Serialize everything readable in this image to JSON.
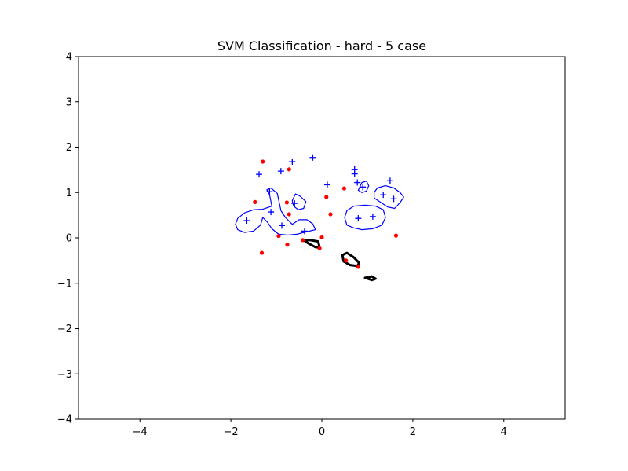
{
  "chart_data": {
    "type": "scatter",
    "title": "SVM Classification - hard - 5 case",
    "xlabel": "",
    "ylabel": "",
    "xlim": [
      -5.35,
      5.35
    ],
    "ylim": [
      -4,
      4
    ],
    "xticks": [
      -4,
      -2,
      0,
      2,
      4
    ],
    "yticks": [
      -4,
      -3,
      -2,
      -1,
      0,
      1,
      2,
      3,
      4
    ],
    "xtick_labels": [
      "−4",
      "−2",
      "0",
      "2",
      "4"
    ],
    "ytick_labels": [
      "−4",
      "−3",
      "−2",
      "−1",
      "0",
      "1",
      "2",
      "3",
      "4"
    ],
    "grid": false,
    "series": [
      {
        "marker": "plus",
        "color": "#0000ff",
        "points": [
          [
            -1.38,
            1.4
          ],
          [
            -0.9,
            1.47
          ],
          [
            -0.65,
            1.68
          ],
          [
            -0.2,
            1.77
          ],
          [
            0.72,
            1.51
          ],
          [
            0.72,
            1.41
          ],
          [
            0.78,
            1.22
          ],
          [
            0.9,
            1.12
          ],
          [
            1.5,
            1.26
          ],
          [
            0.12,
            1.17
          ],
          [
            -1.15,
            1.02
          ],
          [
            -0.6,
            0.76
          ],
          [
            1.35,
            0.95
          ],
          [
            1.58,
            0.86
          ],
          [
            -1.65,
            0.38
          ],
          [
            -1.12,
            0.57
          ],
          [
            -0.88,
            0.27
          ],
          [
            0.8,
            0.43
          ],
          [
            1.12,
            0.47
          ],
          [
            -0.38,
            0.15
          ]
        ]
      },
      {
        "marker": "dot",
        "color": "#ff0000",
        "points": [
          [
            -1.3,
            1.68
          ],
          [
            -0.72,
            1.51
          ],
          [
            -1.47,
            0.79
          ],
          [
            -0.77,
            0.78
          ],
          [
            -0.72,
            0.52
          ],
          [
            0.1,
            0.9
          ],
          [
            0.49,
            1.09
          ],
          [
            0.19,
            0.52
          ],
          [
            -0.95,
            0.04
          ],
          [
            -0.42,
            -0.05
          ],
          [
            -0.76,
            -0.15
          ],
          [
            -0.05,
            -0.23
          ],
          [
            0.0,
            0.01
          ],
          [
            -1.32,
            -0.33
          ],
          [
            1.63,
            0.05
          ],
          [
            0.53,
            -0.5
          ],
          [
            0.8,
            -0.64
          ]
        ]
      }
    ],
    "contours": [
      {
        "color": "#0000ff",
        "path": [
          [
            -0.98,
            0.98
          ],
          [
            -1.12,
            1.1
          ],
          [
            -1.21,
            1.06
          ],
          [
            -1.15,
            0.95
          ],
          [
            -1.1,
            0.7
          ],
          [
            -1.3,
            0.63
          ],
          [
            -1.5,
            0.62
          ],
          [
            -1.7,
            0.55
          ],
          [
            -1.85,
            0.43
          ],
          [
            -1.9,
            0.3
          ],
          [
            -1.85,
            0.18
          ],
          [
            -1.7,
            0.12
          ],
          [
            -1.5,
            0.15
          ],
          [
            -1.35,
            0.28
          ],
          [
            -1.3,
            0.45
          ],
          [
            -1.2,
            0.35
          ],
          [
            -1.1,
            0.2
          ],
          [
            -0.95,
            0.08
          ],
          [
            -0.75,
            0.06
          ],
          [
            -0.55,
            0.08
          ],
          [
            -0.35,
            0.13
          ],
          [
            -0.14,
            0.18
          ],
          [
            -0.2,
            0.31
          ],
          [
            -0.33,
            0.4
          ],
          [
            -0.5,
            0.4
          ],
          [
            -0.65,
            0.3
          ],
          [
            -0.8,
            0.45
          ],
          [
            -0.9,
            0.6
          ],
          [
            -0.98,
            0.98
          ]
        ]
      },
      {
        "color": "#0000ff",
        "path": [
          [
            -0.65,
            0.82
          ],
          [
            -0.58,
            0.97
          ],
          [
            -0.48,
            0.92
          ],
          [
            -0.35,
            0.8
          ],
          [
            -0.4,
            0.65
          ],
          [
            -0.52,
            0.62
          ],
          [
            -0.62,
            0.7
          ],
          [
            -0.65,
            0.82
          ]
        ]
      },
      {
        "color": "#0000ff",
        "path": [
          [
            0.8,
            1.05
          ],
          [
            0.88,
            1.22
          ],
          [
            0.98,
            1.25
          ],
          [
            1.03,
            1.15
          ],
          [
            0.98,
            1.03
          ],
          [
            0.88,
            1.0
          ],
          [
            0.8,
            1.05
          ]
        ]
      },
      {
        "color": "#0000ff",
        "path": [
          [
            1.15,
            1.0
          ],
          [
            1.22,
            1.1
          ],
          [
            1.4,
            1.15
          ],
          [
            1.58,
            1.1
          ],
          [
            1.72,
            1.0
          ],
          [
            1.8,
            0.9
          ],
          [
            1.72,
            0.78
          ],
          [
            1.6,
            0.65
          ],
          [
            1.45,
            0.68
          ],
          [
            1.3,
            0.78
          ],
          [
            1.15,
            0.88
          ],
          [
            1.15,
            1.0
          ]
        ]
      },
      {
        "color": "#0000ff",
        "path": [
          [
            0.55,
            0.6
          ],
          [
            0.7,
            0.7
          ],
          [
            0.95,
            0.72
          ],
          [
            1.18,
            0.7
          ],
          [
            1.35,
            0.62
          ],
          [
            1.4,
            0.45
          ],
          [
            1.32,
            0.28
          ],
          [
            1.12,
            0.2
          ],
          [
            0.88,
            0.18
          ],
          [
            0.7,
            0.22
          ],
          [
            0.55,
            0.28
          ],
          [
            0.5,
            0.45
          ],
          [
            0.55,
            0.6
          ]
        ]
      },
      {
        "color": "#000000",
        "thick": true,
        "path": [
          [
            -0.4,
            -0.05
          ],
          [
            -0.25,
            -0.05
          ],
          [
            -0.08,
            -0.08
          ],
          [
            -0.05,
            -0.22
          ],
          [
            -0.15,
            -0.2
          ],
          [
            -0.3,
            -0.12
          ],
          [
            -0.4,
            -0.05
          ]
        ]
      },
      {
        "color": "#000000",
        "thick": true,
        "path": [
          [
            0.45,
            -0.38
          ],
          [
            0.55,
            -0.33
          ],
          [
            0.7,
            -0.43
          ],
          [
            0.82,
            -0.55
          ],
          [
            0.78,
            -0.62
          ],
          [
            0.62,
            -0.6
          ],
          [
            0.48,
            -0.52
          ],
          [
            0.45,
            -0.38
          ]
        ]
      },
      {
        "color": "#000000",
        "thick": true,
        "path": [
          [
            0.95,
            -0.88
          ],
          [
            1.1,
            -0.85
          ],
          [
            1.18,
            -0.9
          ],
          [
            1.1,
            -0.93
          ],
          [
            0.95,
            -0.88
          ]
        ]
      }
    ]
  }
}
